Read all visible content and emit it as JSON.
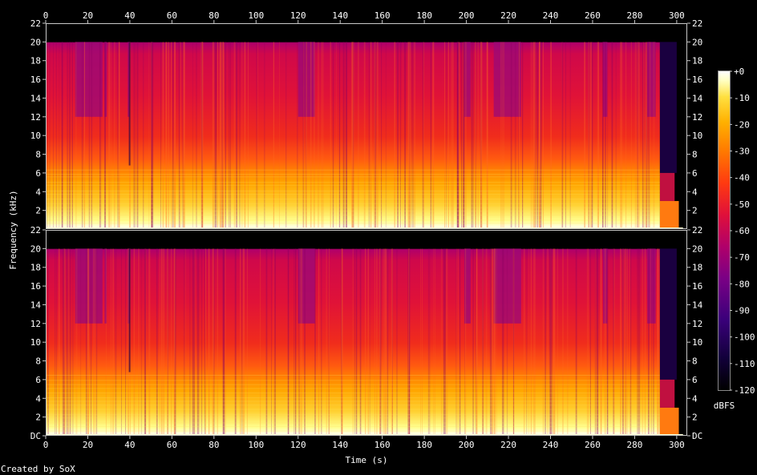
{
  "chart_data": {
    "type": "heatmap",
    "title": "",
    "xlabel": "Time (s)",
    "ylabel": "Frequency (kHz)",
    "colorbar_label": "dBFS",
    "credit": "Created by SoX",
    "xlim": [
      0,
      305
    ],
    "x_ticks": [
      0,
      20,
      40,
      60,
      80,
      100,
      120,
      140,
      160,
      180,
      200,
      220,
      240,
      260,
      280,
      300
    ],
    "ylim_khz": [
      0,
      22
    ],
    "y_tick_labels": [
      "DC",
      "2",
      "4",
      "6",
      "8",
      "10",
      "12",
      "14",
      "16",
      "18",
      "20",
      "22"
    ],
    "colorbar_range": [
      -120,
      0
    ],
    "colorbar_tick_labels": [
      "+0",
      "-10",
      "-20",
      "-30",
      "-40",
      "-50",
      "-60",
      "-70",
      "-80",
      "-90",
      "-100",
      "-110",
      "-120"
    ],
    "channels": [
      {
        "name": ""
      },
      {
        "name": ""
      }
    ],
    "audio_end_s": 292,
    "band_limit_khz": 20,
    "palette": [
      "#000000",
      "#1a0033",
      "#3a007a",
      "#7a0085",
      "#b0006a",
      "#e0103a",
      "#ff3a10",
      "#ff7a00",
      "#ffb000",
      "#ffe040",
      "#ffffc0",
      "#ffffff"
    ]
  }
}
